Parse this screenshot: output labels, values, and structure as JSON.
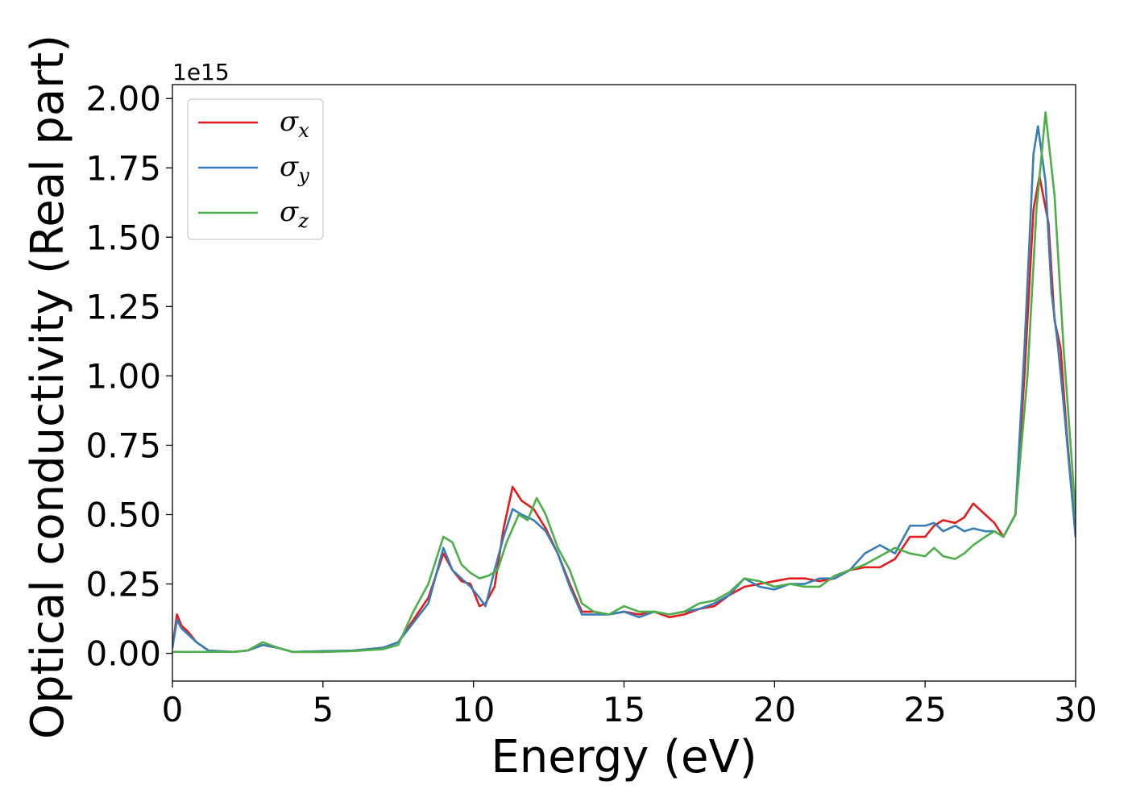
{
  "chart_data": {
    "type": "line",
    "title": "",
    "xlabel": "Energy (eV)",
    "ylabel": "Optical conductivity (Real part)",
    "y_offset_text": "1e15",
    "xlim": [
      0,
      30
    ],
    "ylim": [
      -0.1,
      2.05
    ],
    "x_ticks": [
      0,
      5,
      10,
      15,
      20,
      25,
      30
    ],
    "x_tick_labels": [
      "0",
      "5",
      "10",
      "15",
      "20",
      "25",
      "30"
    ],
    "y_ticks": [
      0.0,
      0.25,
      0.5,
      0.75,
      1.0,
      1.25,
      1.5,
      1.75,
      2.0
    ],
    "y_tick_labels": [
      "0.00",
      "0.25",
      "0.50",
      "0.75",
      "1.00",
      "1.25",
      "1.50",
      "1.75",
      "2.00"
    ],
    "grid": false,
    "legend_position": "top-left",
    "series": [
      {
        "name": "σx",
        "legend_symbol": "σ",
        "legend_subscript": "x",
        "color": "#e41a1c",
        "points": [
          [
            0,
            0.02
          ],
          [
            0.15,
            0.14
          ],
          [
            0.3,
            0.1
          ],
          [
            0.5,
            0.08
          ],
          [
            0.8,
            0.04
          ],
          [
            1.2,
            0.01
          ],
          [
            2.0,
            0.005
          ],
          [
            2.5,
            0.01
          ],
          [
            3.0,
            0.03
          ],
          [
            3.5,
            0.02
          ],
          [
            4.0,
            0.005
          ],
          [
            5.0,
            0.005
          ],
          [
            6.0,
            0.01
          ],
          [
            7.0,
            0.02
          ],
          [
            7.5,
            0.04
          ],
          [
            8.0,
            0.12
          ],
          [
            8.5,
            0.2
          ],
          [
            9.0,
            0.36
          ],
          [
            9.3,
            0.3
          ],
          [
            9.6,
            0.26
          ],
          [
            9.9,
            0.25
          ],
          [
            10.2,
            0.17
          ],
          [
            10.4,
            0.18
          ],
          [
            10.7,
            0.24
          ],
          [
            11.0,
            0.45
          ],
          [
            11.3,
            0.6
          ],
          [
            11.6,
            0.55
          ],
          [
            12.0,
            0.52
          ],
          [
            12.4,
            0.45
          ],
          [
            12.8,
            0.36
          ],
          [
            13.2,
            0.25
          ],
          [
            13.6,
            0.15
          ],
          [
            14.0,
            0.15
          ],
          [
            14.5,
            0.14
          ],
          [
            15.0,
            0.15
          ],
          [
            15.5,
            0.14
          ],
          [
            16.0,
            0.15
          ],
          [
            16.5,
            0.13
          ],
          [
            17.0,
            0.14
          ],
          [
            17.5,
            0.16
          ],
          [
            18.0,
            0.17
          ],
          [
            18.5,
            0.21
          ],
          [
            19.0,
            0.24
          ],
          [
            19.5,
            0.25
          ],
          [
            20.0,
            0.26
          ],
          [
            20.5,
            0.27
          ],
          [
            21.0,
            0.27
          ],
          [
            21.5,
            0.26
          ],
          [
            22.0,
            0.27
          ],
          [
            22.5,
            0.3
          ],
          [
            23.0,
            0.31
          ],
          [
            23.5,
            0.31
          ],
          [
            24.0,
            0.34
          ],
          [
            24.5,
            0.42
          ],
          [
            25.0,
            0.42
          ],
          [
            25.3,
            0.46
          ],
          [
            25.6,
            0.48
          ],
          [
            26.0,
            0.47
          ],
          [
            26.3,
            0.49
          ],
          [
            26.6,
            0.54
          ],
          [
            27.0,
            0.5
          ],
          [
            27.3,
            0.47
          ],
          [
            27.6,
            0.42
          ],
          [
            28.0,
            0.5
          ],
          [
            28.3,
            1.0
          ],
          [
            28.6,
            1.6
          ],
          [
            28.8,
            1.72
          ],
          [
            29.1,
            1.55
          ],
          [
            29.3,
            1.2
          ],
          [
            29.5,
            1.1
          ],
          [
            29.7,
            0.8
          ],
          [
            30.0,
            0.42
          ]
        ]
      },
      {
        "name": "σy",
        "legend_symbol": "σ",
        "legend_subscript": "y",
        "color": "#377eb8",
        "points": [
          [
            0,
            0.02
          ],
          [
            0.15,
            0.12
          ],
          [
            0.3,
            0.09
          ],
          [
            0.5,
            0.07
          ],
          [
            0.8,
            0.04
          ],
          [
            1.2,
            0.01
          ],
          [
            2.0,
            0.005
          ],
          [
            2.5,
            0.01
          ],
          [
            3.0,
            0.03
          ],
          [
            3.5,
            0.02
          ],
          [
            4.0,
            0.005
          ],
          [
            5.0,
            0.008
          ],
          [
            6.0,
            0.01
          ],
          [
            7.0,
            0.02
          ],
          [
            7.5,
            0.04
          ],
          [
            8.0,
            0.11
          ],
          [
            8.5,
            0.18
          ],
          [
            9.0,
            0.38
          ],
          [
            9.3,
            0.3
          ],
          [
            9.6,
            0.27
          ],
          [
            9.9,
            0.24
          ],
          [
            10.2,
            0.2
          ],
          [
            10.4,
            0.17
          ],
          [
            10.7,
            0.3
          ],
          [
            11.0,
            0.42
          ],
          [
            11.3,
            0.52
          ],
          [
            11.6,
            0.5
          ],
          [
            12.0,
            0.48
          ],
          [
            12.4,
            0.44
          ],
          [
            12.8,
            0.36
          ],
          [
            13.2,
            0.24
          ],
          [
            13.6,
            0.14
          ],
          [
            14.0,
            0.14
          ],
          [
            14.5,
            0.14
          ],
          [
            15.0,
            0.15
          ],
          [
            15.5,
            0.13
          ],
          [
            16.0,
            0.15
          ],
          [
            16.5,
            0.14
          ],
          [
            17.0,
            0.15
          ],
          [
            17.5,
            0.16
          ],
          [
            18.0,
            0.18
          ],
          [
            18.5,
            0.21
          ],
          [
            19.0,
            0.27
          ],
          [
            19.5,
            0.24
          ],
          [
            20.0,
            0.23
          ],
          [
            20.5,
            0.25
          ],
          [
            21.0,
            0.25
          ],
          [
            21.5,
            0.27
          ],
          [
            22.0,
            0.27
          ],
          [
            22.5,
            0.3
          ],
          [
            23.0,
            0.36
          ],
          [
            23.5,
            0.39
          ],
          [
            24.0,
            0.36
          ],
          [
            24.5,
            0.46
          ],
          [
            25.0,
            0.46
          ],
          [
            25.3,
            0.47
          ],
          [
            25.6,
            0.44
          ],
          [
            26.0,
            0.46
          ],
          [
            26.3,
            0.44
          ],
          [
            26.6,
            0.45
          ],
          [
            27.0,
            0.44
          ],
          [
            27.3,
            0.44
          ],
          [
            27.6,
            0.42
          ],
          [
            28.0,
            0.5
          ],
          [
            28.3,
            1.1
          ],
          [
            28.6,
            1.8
          ],
          [
            28.75,
            1.9
          ],
          [
            29.0,
            1.7
          ],
          [
            29.2,
            1.3
          ],
          [
            29.4,
            1.12
          ],
          [
            29.6,
            0.9
          ],
          [
            30.0,
            0.42
          ]
        ]
      },
      {
        "name": "σz",
        "legend_symbol": "σ",
        "legend_subscript": "z",
        "color": "#4daf4a",
        "points": [
          [
            0,
            0.005
          ],
          [
            0.3,
            0.005
          ],
          [
            1.0,
            0.005
          ],
          [
            2.0,
            0.005
          ],
          [
            2.5,
            0.01
          ],
          [
            3.0,
            0.04
          ],
          [
            3.5,
            0.02
          ],
          [
            4.0,
            0.005
          ],
          [
            5.0,
            0.005
          ],
          [
            6.0,
            0.008
          ],
          [
            7.0,
            0.015
          ],
          [
            7.5,
            0.03
          ],
          [
            8.0,
            0.15
          ],
          [
            8.5,
            0.25
          ],
          [
            9.0,
            0.42
          ],
          [
            9.3,
            0.4
          ],
          [
            9.6,
            0.32
          ],
          [
            9.9,
            0.29
          ],
          [
            10.2,
            0.27
          ],
          [
            10.5,
            0.28
          ],
          [
            10.8,
            0.3
          ],
          [
            11.1,
            0.4
          ],
          [
            11.5,
            0.5
          ],
          [
            11.8,
            0.48
          ],
          [
            12.1,
            0.56
          ],
          [
            12.4,
            0.5
          ],
          [
            12.8,
            0.38
          ],
          [
            13.2,
            0.3
          ],
          [
            13.6,
            0.18
          ],
          [
            14.0,
            0.15
          ],
          [
            14.5,
            0.14
          ],
          [
            15.0,
            0.17
          ],
          [
            15.5,
            0.15
          ],
          [
            16.0,
            0.15
          ],
          [
            16.5,
            0.14
          ],
          [
            17.0,
            0.15
          ],
          [
            17.5,
            0.18
          ],
          [
            18.0,
            0.19
          ],
          [
            18.5,
            0.22
          ],
          [
            19.0,
            0.27
          ],
          [
            19.5,
            0.26
          ],
          [
            20.0,
            0.24
          ],
          [
            20.5,
            0.25
          ],
          [
            21.0,
            0.24
          ],
          [
            21.5,
            0.24
          ],
          [
            22.0,
            0.28
          ],
          [
            22.5,
            0.3
          ],
          [
            23.0,
            0.32
          ],
          [
            23.5,
            0.35
          ],
          [
            24.0,
            0.38
          ],
          [
            24.5,
            0.36
          ],
          [
            25.0,
            0.35
          ],
          [
            25.3,
            0.38
          ],
          [
            25.6,
            0.35
          ],
          [
            26.0,
            0.34
          ],
          [
            26.3,
            0.36
          ],
          [
            26.6,
            0.39
          ],
          [
            27.0,
            0.42
          ],
          [
            27.3,
            0.44
          ],
          [
            27.6,
            0.42
          ],
          [
            28.0,
            0.5
          ],
          [
            28.4,
            1.0
          ],
          [
            28.7,
            1.6
          ],
          [
            29.0,
            1.95
          ],
          [
            29.3,
            1.65
          ],
          [
            29.6,
            1.1
          ],
          [
            29.8,
            0.8
          ],
          [
            30.0,
            0.5
          ]
        ]
      }
    ]
  }
}
